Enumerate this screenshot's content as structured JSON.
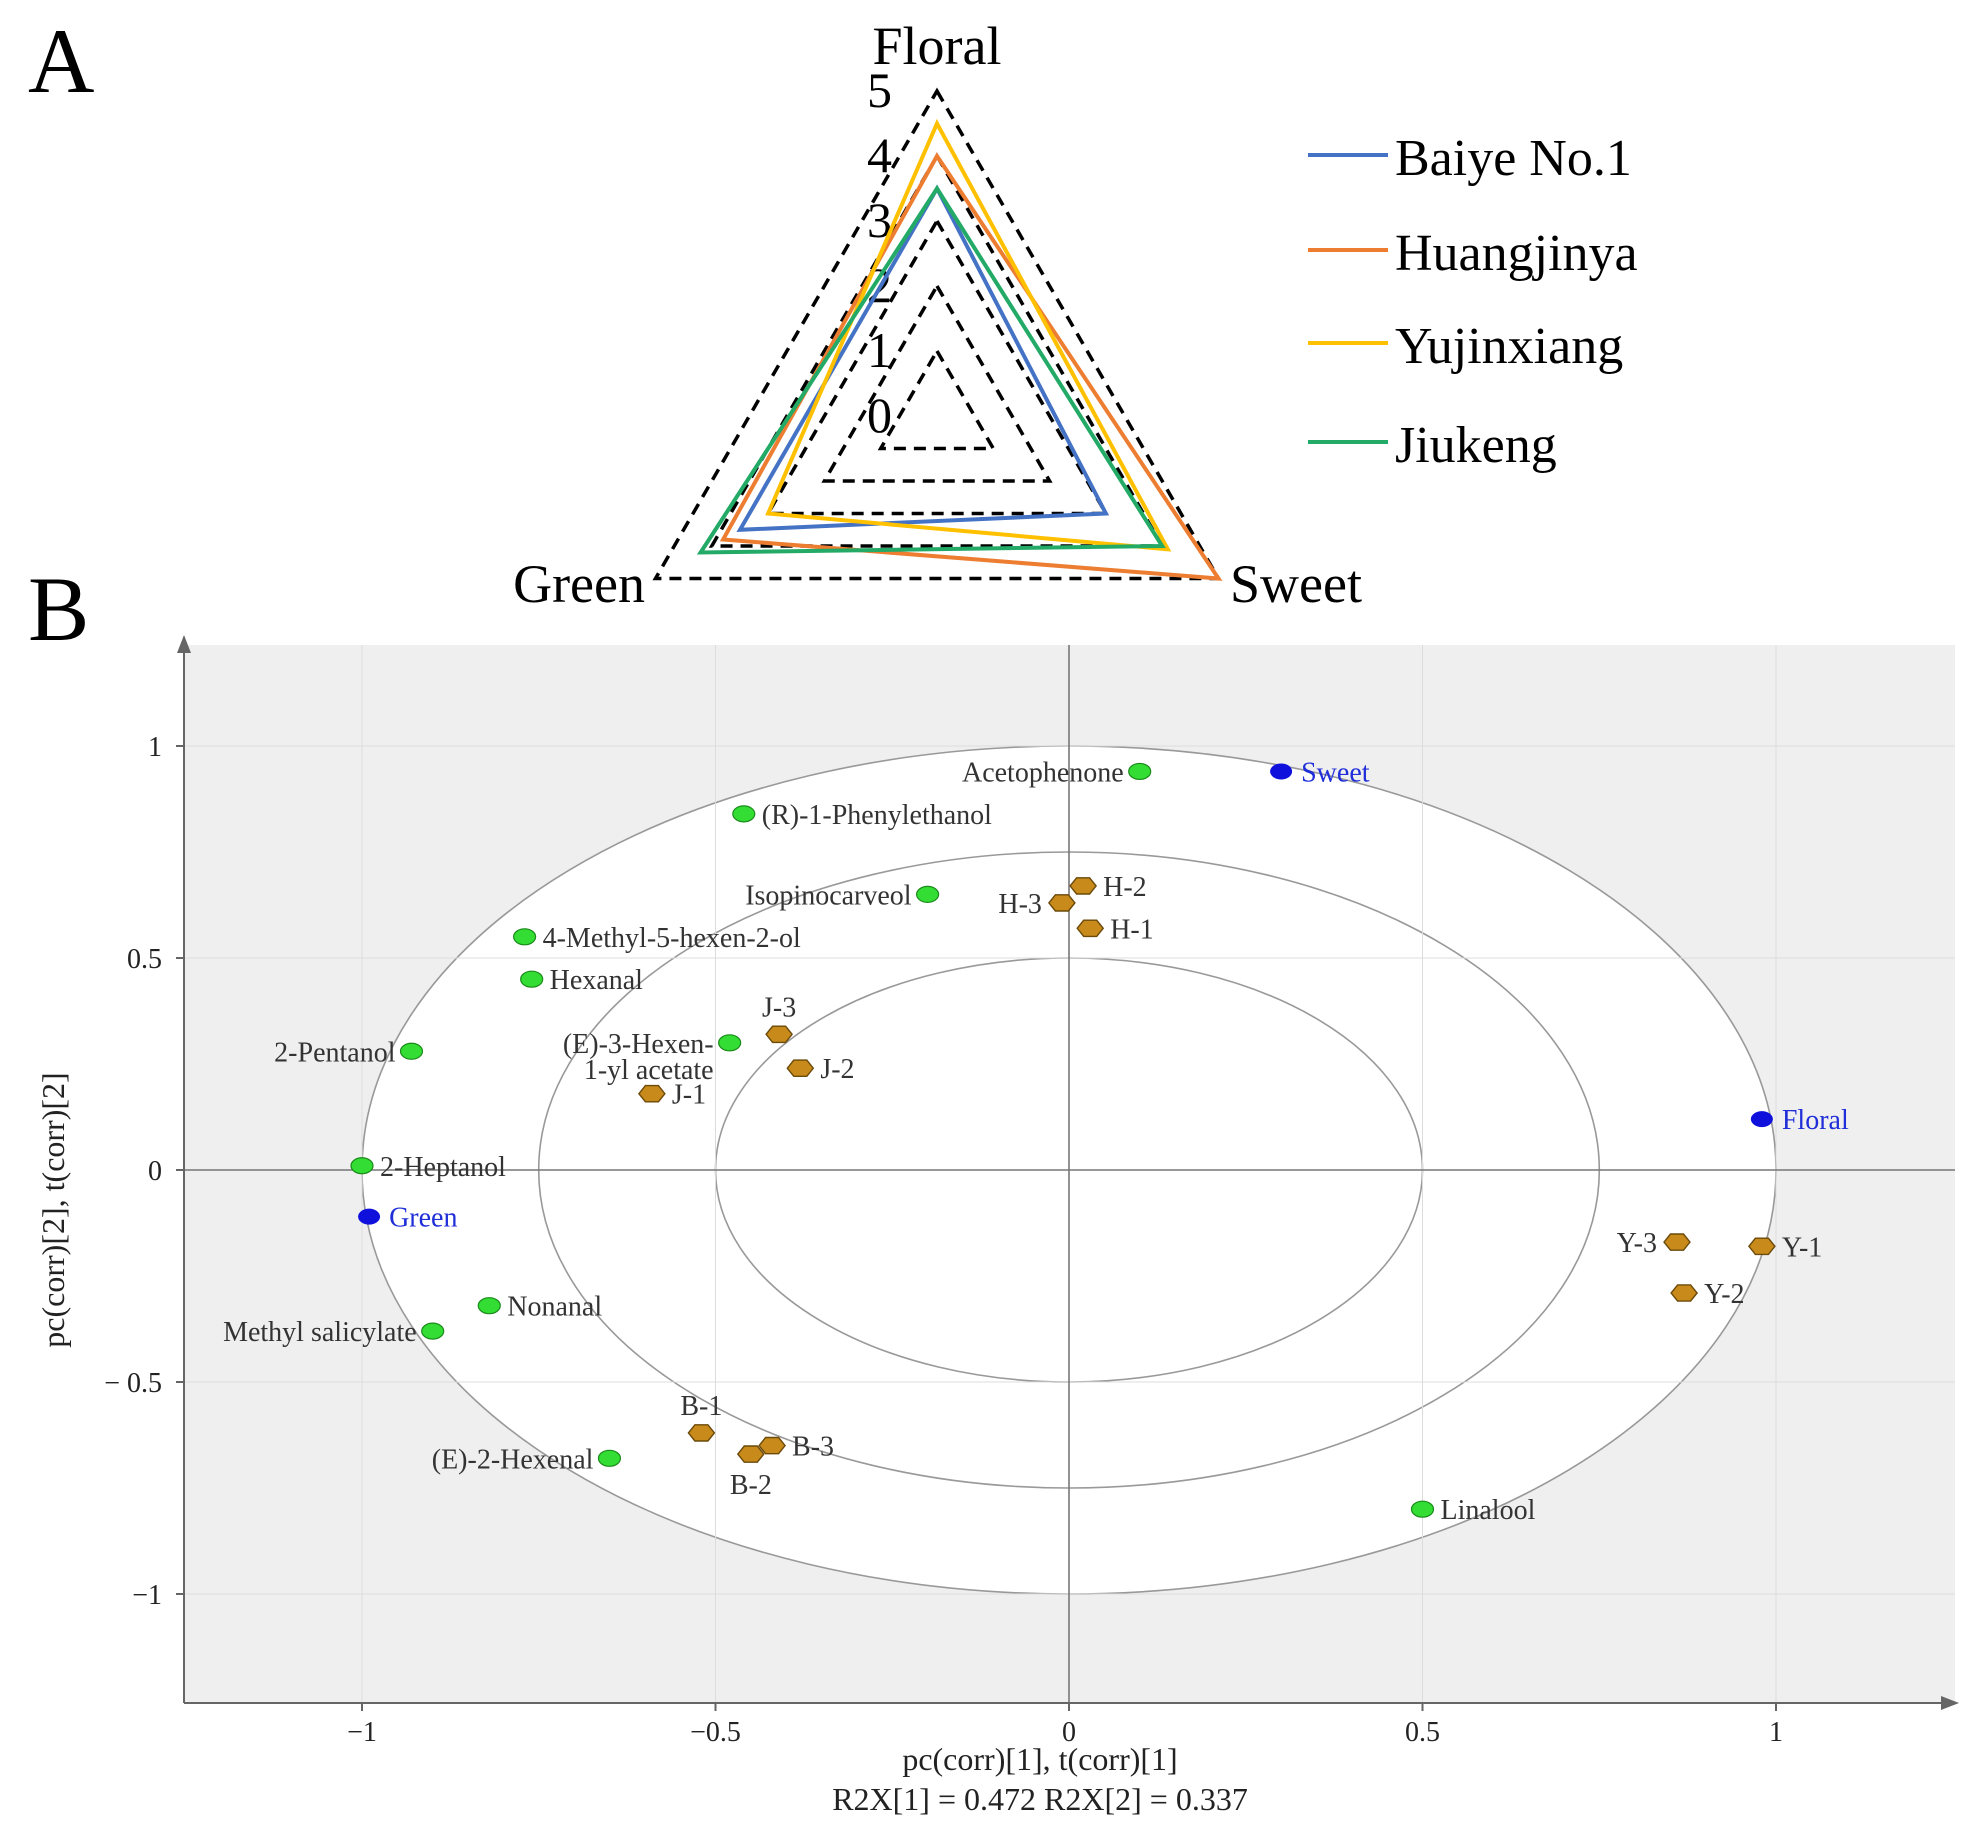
{
  "panel_labels": [
    "A",
    "B"
  ],
  "chart_data": [
    {
      "type": "radar",
      "axes": [
        "Floral",
        "Sweet",
        "Green"
      ],
      "scale_ticks": [
        "0",
        "1",
        "2",
        "3",
        "4",
        "5"
      ],
      "rmax": 5,
      "series": [
        {
          "name": "Baiye No.1",
          "color": "#4472c4",
          "values": {
            "Floral": 3.5,
            "Sweet": 3.0,
            "Green": 3.5
          }
        },
        {
          "name": "Huangjinya",
          "color": "#ed7d31",
          "values": {
            "Floral": 4.0,
            "Sweet": 5.0,
            "Green": 3.8
          }
        },
        {
          "name": "Yujinxiang",
          "color": "#ffc000",
          "values": {
            "Floral": 4.5,
            "Sweet": 4.1,
            "Green": 3.0
          }
        },
        {
          "name": "Jiukeng",
          "color": "#22aa66",
          "values": {
            "Floral": 3.5,
            "Sweet": 4.0,
            "Green": 4.2
          }
        }
      ]
    },
    {
      "type": "scatter",
      "xlabel": "pc(corr)[1], t(corr)[1]",
      "ylabel": "pc(corr)[2], t(corr)[2]",
      "footer": "R2X[1] = 0.472 R2X[2] = 0.337",
      "xlim": [
        -1.25,
        1.22
      ],
      "ylim": [
        -1.26,
        1.23
      ],
      "xticks": [
        {
          "v": -1,
          "label": "−1"
        },
        {
          "v": -0.5,
          "label": "−0.5"
        },
        {
          "v": 0,
          "label": "0"
        },
        {
          "v": 0.5,
          "label": "0.5"
        },
        {
          "v": 1,
          "label": "1"
        }
      ],
      "yticks": [
        {
          "v": 1,
          "label": "1"
        },
        {
          "v": 0.5,
          "label": "0.5"
        },
        {
          "v": 0,
          "label": "0"
        },
        {
          "v": -0.5,
          "label": "− 0.5"
        },
        {
          "v": -1,
          "label": "−1"
        }
      ],
      "circle_radii": [
        0.5,
        0.75,
        1.0
      ],
      "colors": {
        "compound": "#33dd33",
        "attribute": "#1010dd",
        "sample": "#c88a1a",
        "plot_bg": "#efefef",
        "inner_bg": "#ffffff"
      },
      "compounds": [
        {
          "name": "Acetophenone",
          "x": 0.1,
          "y": 0.94,
          "anchor": "end"
        },
        {
          "name": "(R)-1-Phenylethanol",
          "x": -0.46,
          "y": 0.84,
          "anchor": "start"
        },
        {
          "name": "Isopinocarveol",
          "x": -0.2,
          "y": 0.65,
          "anchor": "end"
        },
        {
          "name": "4-Methyl-5-hexen-2-ol",
          "x": -0.77,
          "y": 0.55,
          "anchor": "start"
        },
        {
          "name": "Hexanal",
          "x": -0.76,
          "y": 0.45,
          "anchor": "start"
        },
        {
          "name": "2-Pentanol",
          "x": -0.93,
          "y": 0.28,
          "anchor": "end"
        },
        {
          "name": "(E)-3-Hexen-",
          "x": -0.48,
          "y": 0.3,
          "anchor": "end",
          "extra": "1-yl acetate"
        },
        {
          "name": "2-Heptanol",
          "x": -1.0,
          "y": 0.01,
          "anchor": "start"
        },
        {
          "name": "Nonanal",
          "x": -0.82,
          "y": -0.32,
          "anchor": "start"
        },
        {
          "name": "Methyl salicylate",
          "x": -0.9,
          "y": -0.38,
          "anchor": "end"
        },
        {
          "name": "(E)-2-Hexenal",
          "x": -0.65,
          "y": -0.68,
          "anchor": "end"
        },
        {
          "name": "Linalool",
          "x": 0.5,
          "y": -0.8,
          "anchor": "start"
        }
      ],
      "attributes": [
        {
          "name": "Sweet",
          "x": 0.3,
          "y": 0.94
        },
        {
          "name": "Floral",
          "x": 0.98,
          "y": 0.12
        },
        {
          "name": "Green",
          "x": -0.99,
          "y": -0.11
        }
      ],
      "samples": [
        {
          "name": "H-2",
          "x": 0.02,
          "y": 0.67,
          "pos": "right"
        },
        {
          "name": "H-3",
          "x": -0.01,
          "y": 0.63,
          "pos": "left"
        },
        {
          "name": "H-1",
          "x": 0.03,
          "y": 0.57,
          "pos": "right"
        },
        {
          "name": "J-3",
          "x": -0.41,
          "y": 0.32,
          "pos": "above"
        },
        {
          "name": "J-2",
          "x": -0.38,
          "y": 0.24,
          "pos": "right"
        },
        {
          "name": "J-1",
          "x": -0.59,
          "y": 0.18,
          "pos": "right"
        },
        {
          "name": "Y-3",
          "x": 0.86,
          "y": -0.17,
          "pos": "left"
        },
        {
          "name": "Y-1",
          "x": 0.98,
          "y": -0.18,
          "pos": "right"
        },
        {
          "name": "Y-2",
          "x": 0.87,
          "y": -0.29,
          "pos": "right"
        },
        {
          "name": "B-1",
          "x": -0.52,
          "y": -0.62,
          "pos": "above"
        },
        {
          "name": "B-3",
          "x": -0.42,
          "y": -0.65,
          "pos": "right"
        },
        {
          "name": "B-2",
          "x": -0.45,
          "y": -0.67,
          "pos": "below"
        }
      ]
    }
  ]
}
